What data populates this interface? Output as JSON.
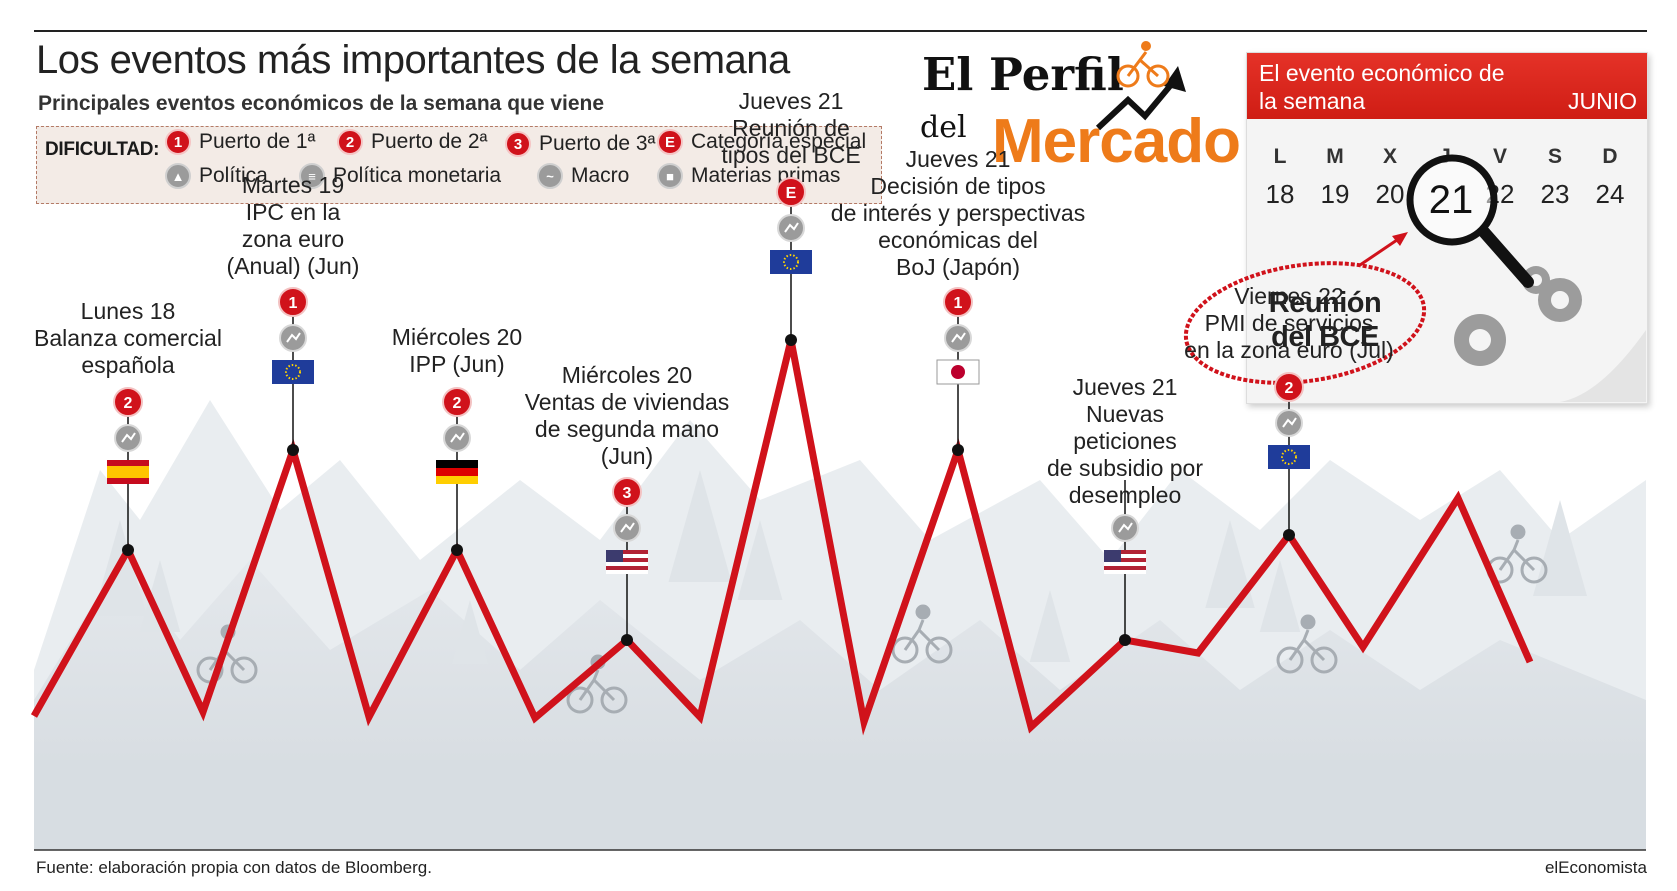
{
  "header": {
    "title": "Los eventos más importantes de la semana",
    "subtitle": "Principales eventos económicos de la semana que viene"
  },
  "legend": {
    "heading": "DIFICULTAD:",
    "difficulty": [
      {
        "symbol": "1",
        "label": "Puerto de 1ª"
      },
      {
        "symbol": "2",
        "label": "Puerto de 2ª"
      },
      {
        "symbol": "3",
        "label": "Puerto de 3ª"
      },
      {
        "symbol": "E",
        "label": "Categoría especial"
      }
    ],
    "categories": [
      {
        "icon": "politics-icon",
        "label": "Política"
      },
      {
        "icon": "monetary-policy-icon",
        "label": "Política monetaria"
      },
      {
        "icon": "macro-icon",
        "label": "Macro"
      },
      {
        "icon": "commodities-icon",
        "label": "Materias primas"
      }
    ]
  },
  "logo": {
    "line1": "El Perfil",
    "line2": "del",
    "line3": "Mercado"
  },
  "calendar": {
    "title": "El evento económico de la semana",
    "month": "JUNIO",
    "weekdays": [
      "L",
      "M",
      "X",
      "J",
      "V",
      "S",
      "D"
    ],
    "days": [
      "18",
      "19",
      "20",
      "21",
      "22",
      "23",
      "24"
    ],
    "highlight": "21",
    "event": "Reunión del BCE"
  },
  "events": [
    {
      "lines": [
        "Lunes 18",
        "Balanza comercial",
        "española"
      ],
      "difficulty": "2",
      "category": "macro-icon",
      "flag": "spain-flag",
      "height": 0.32
    },
    {
      "lines": [
        "Martes 19",
        "IPC en la",
        "zona euro",
        "(Anual) (Jun)"
      ],
      "difficulty": "1",
      "category": "macro-icon",
      "flag": "eu-flag",
      "height": 0.52
    },
    {
      "lines": [
        "Miércoles 20",
        "IPP (Jun)"
      ],
      "difficulty": "2",
      "category": "macro-icon",
      "flag": "germany-flag",
      "height": 0.32
    },
    {
      "lines": [
        "Miércoles 20",
        "Ventas de viviendas",
        "de segunda mano",
        "(Jun)"
      ],
      "difficulty": "3",
      "category": "macro-icon",
      "flag": "usa-flag",
      "height": 0.2
    },
    {
      "lines": [
        "Jueves 21",
        "Reunión de",
        "tipos del BCE"
      ],
      "difficulty": "E",
      "category": "monetary-policy-icon",
      "flag": "eu-flag",
      "height": 0.74
    },
    {
      "lines": [
        "Jueves 21",
        "Decisión de tipos",
        "de interés y perspectivas",
        "económicas del",
        "BoJ (Japón)"
      ],
      "difficulty": "1",
      "category": "monetary-policy-icon",
      "flag": "japan-flag",
      "height": 0.52
    },
    {
      "lines": [
        "Jueves 21",
        "Nuevas",
        "peticiones",
        "de subsidio por",
        "desempleo"
      ],
      "difficulty": "",
      "category": "macro-icon",
      "flag": "usa-flag",
      "height": 0.2
    },
    {
      "lines": [
        "Viernes 22",
        "PMI de servicios",
        "en la zona euro (Jul)"
      ],
      "difficulty": "2",
      "category": "macro-icon",
      "flag": "eu-flag",
      "height": 0.35
    }
  ],
  "colors": {
    "accent": "#d0121b",
    "brand": "#ee7b1a",
    "mountain": "#d9dee3",
    "text": "#222222"
  },
  "footer": {
    "source": "Fuente: elaboración propia con datos de Bloomberg.",
    "brand": "elEconomista"
  }
}
